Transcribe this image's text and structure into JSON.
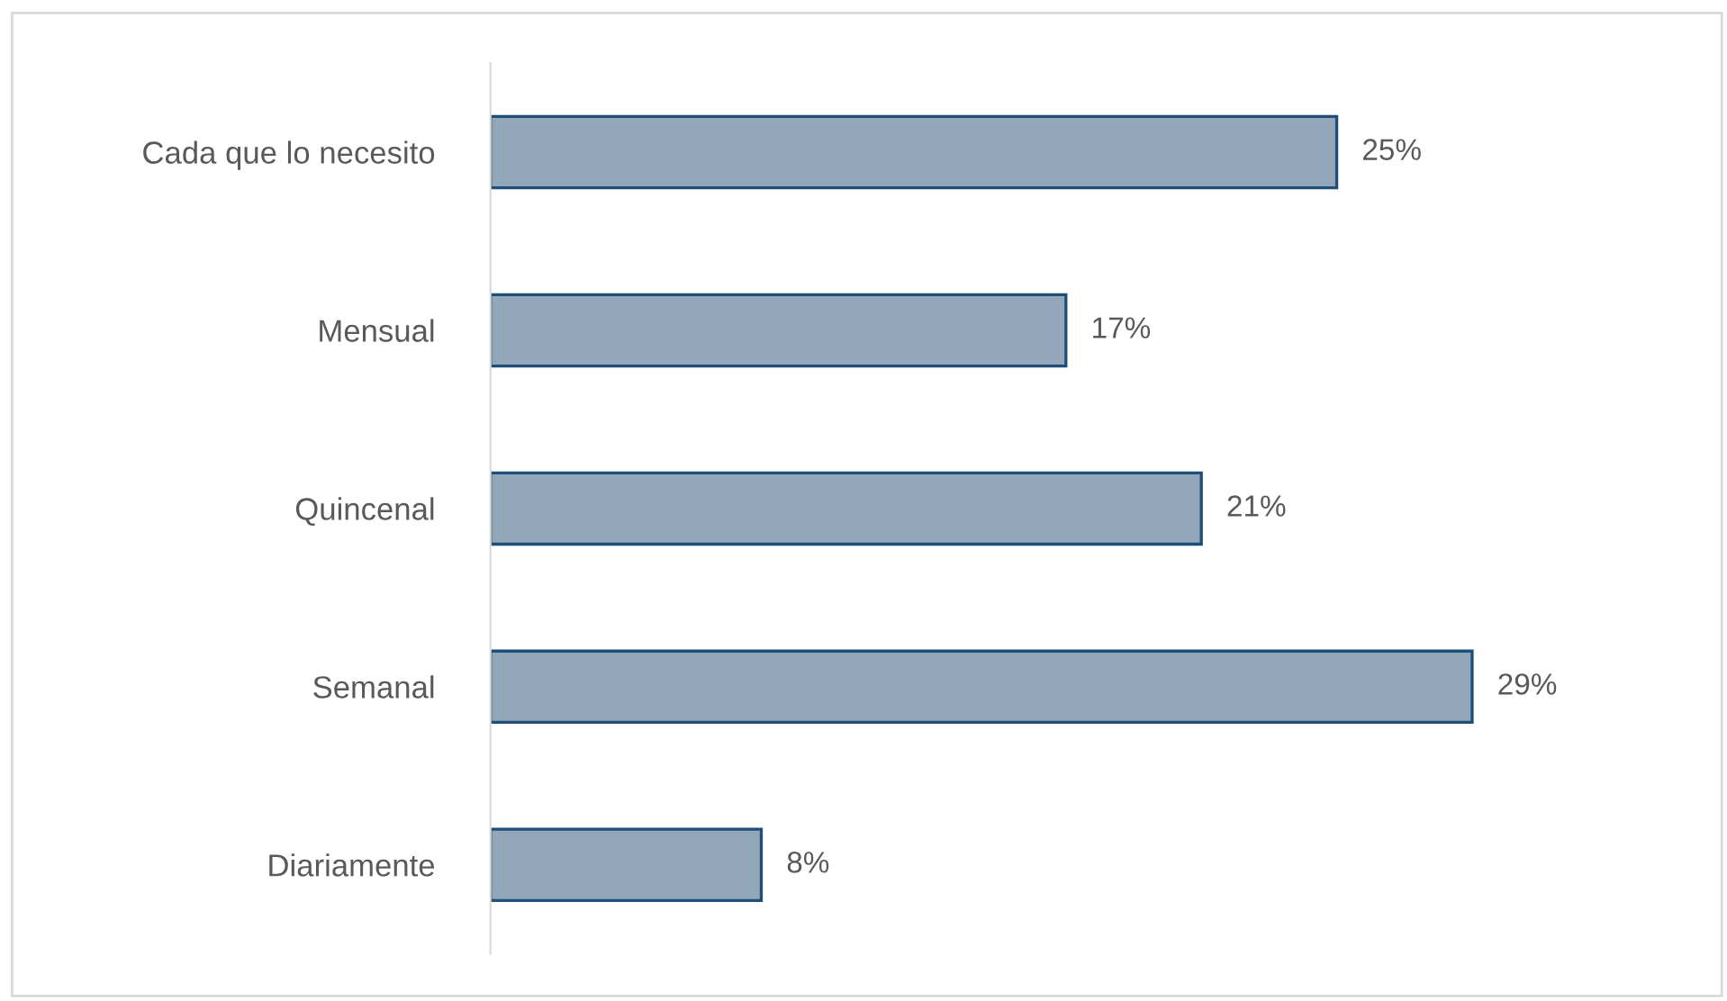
{
  "chart_data": {
    "type": "bar",
    "orientation": "horizontal",
    "categories": [
      "Cada que lo necesito",
      "Mensual",
      "Quincenal",
      "Semanal",
      "Diariamente"
    ],
    "values": [
      25,
      17,
      21,
      29,
      8
    ],
    "value_labels": [
      "25%",
      "17%",
      "21%",
      "29%",
      "8%"
    ],
    "color": "#93a7ba",
    "grid": false,
    "legend": false
  }
}
